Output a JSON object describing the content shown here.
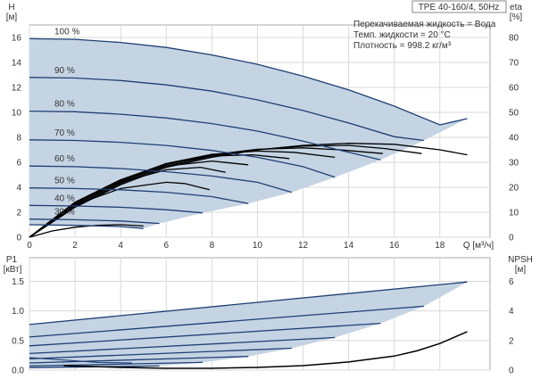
{
  "chart_data": [
    {
      "panel": "top",
      "type": "line",
      "header": "TPE 40-160/4, 50Hz",
      "info_lines": [
        "Перекачиваемая жидкость = Вода",
        "Темп. жидкости = 20 °C",
        "Плотность = 998.2 кг/м³"
      ],
      "xlabel": "Q [м³/ч]",
      "ylabel_left": [
        "H",
        "[м]"
      ],
      "ylabel_right": [
        "eta",
        "[%]"
      ],
      "xlim": [
        0,
        20.2
      ],
      "ylim": [
        0,
        17
      ],
      "ylim_right": [
        0,
        85
      ],
      "xticks": [
        "0",
        "2",
        "4",
        "6",
        "8",
        "10",
        "12",
        "14",
        "16",
        "18"
      ],
      "yticks_left": [
        "0",
        "2",
        "4",
        "6",
        "8",
        "10",
        "12",
        "14",
        "16"
      ],
      "yticks_right": [
        "0",
        "10",
        "20",
        "30",
        "40",
        "50",
        "60",
        "70",
        "80"
      ],
      "grid": true,
      "operating_area_color": "#c5d4e3",
      "head_curve_color": "#1f3f73",
      "efficiency_curve_color": "#000000",
      "head_curves": [
        {
          "label": "100 %",
          "x": [
            0,
            2,
            4,
            6,
            8,
            10,
            12,
            14,
            16,
            18,
            19.2
          ],
          "y": [
            15.9,
            15.85,
            15.6,
            15.2,
            14.6,
            13.85,
            12.9,
            11.8,
            10.5,
            9.0,
            9.5
          ]
        },
        {
          "label": "90 %",
          "x": [
            0,
            2,
            4,
            6,
            8,
            10,
            12,
            14,
            16,
            17.3
          ],
          "y": [
            12.8,
            12.75,
            12.55,
            12.2,
            11.7,
            11.0,
            10.15,
            9.15,
            8.05,
            7.75
          ]
        },
        {
          "label": "80 %",
          "x": [
            0,
            2,
            4,
            6,
            8,
            10,
            12,
            14,
            15.4
          ],
          "y": [
            10.1,
            10.05,
            9.85,
            9.55,
            9.1,
            8.5,
            7.7,
            6.8,
            6.2
          ]
        },
        {
          "label": "70 %",
          "x": [
            0,
            2,
            4,
            6,
            8,
            10,
            12,
            13.4
          ],
          "y": [
            7.8,
            7.75,
            7.6,
            7.35,
            6.95,
            6.4,
            5.65,
            4.8
          ]
        },
        {
          "label": "60 %",
          "x": [
            0,
            2,
            4,
            6,
            8,
            10,
            11.5
          ],
          "y": [
            5.7,
            5.65,
            5.5,
            5.25,
            4.9,
            4.4,
            3.6
          ]
        },
        {
          "label": "50 %",
          "x": [
            0,
            2,
            4,
            6,
            8,
            9.6
          ],
          "y": [
            3.95,
            3.9,
            3.8,
            3.6,
            3.25,
            2.7
          ]
        },
        {
          "label": "40 %",
          "x": [
            0,
            2,
            4,
            6,
            7.6
          ],
          "y": [
            2.55,
            2.5,
            2.4,
            2.2,
            1.95
          ]
        },
        {
          "label": "30 %",
          "x": [
            0,
            2,
            4,
            5.7
          ],
          "y": [
            1.45,
            1.4,
            1.3,
            1.1
          ]
        },
        {
          "label": "",
          "x": [
            0,
            2,
            4,
            5
          ],
          "y": [
            1.0,
            0.95,
            0.85,
            0.7
          ]
        }
      ],
      "efficiency_curves_pct": [
        {
          "x": [
            0,
            2,
            4,
            6,
            8,
            10,
            12,
            14,
            16,
            18,
            19.2
          ],
          "y": [
            0,
            12,
            21,
            28,
            32,
            35,
            36.8,
            37.6,
            37.2,
            35,
            33
          ]
        },
        {
          "x": [
            0,
            2,
            4,
            6,
            8,
            10,
            12,
            14,
            15.6,
            17.2
          ],
          "y": [
            0,
            12.5,
            21.5,
            28.5,
            32.5,
            35,
            36.5,
            36.8,
            35.5,
            33.5
          ]
        },
        {
          "x": [
            0,
            2,
            4,
            6,
            8,
            10,
            12,
            13.6,
            15.5
          ],
          "y": [
            0,
            13,
            22,
            29,
            33,
            35.2,
            35.8,
            35,
            33.5
          ]
        },
        {
          "x": [
            0,
            2,
            4,
            6,
            8,
            10,
            11.6,
            13.4
          ],
          "y": [
            0,
            13.5,
            22.5,
            29.5,
            33.2,
            34.5,
            34,
            32
          ]
        },
        {
          "x": [
            0,
            2,
            4,
            6,
            8,
            9.8,
            11.4
          ],
          "y": [
            0,
            14,
            23,
            29.5,
            32.5,
            33,
            31.5
          ]
        },
        {
          "x": [
            0,
            2,
            4,
            6,
            8,
            9.6
          ],
          "y": [
            0,
            14,
            23,
            28.5,
            30.5,
            29
          ]
        },
        {
          "x": [
            0,
            2,
            4,
            6,
            7.5,
            8.6
          ],
          "y": [
            0,
            14,
            22,
            27,
            28,
            26
          ]
        },
        {
          "x": [
            0,
            2,
            4,
            6,
            6.8,
            7.9
          ],
          "y": [
            0,
            13,
            19.5,
            22,
            21.5,
            19
          ]
        },
        {
          "x": [
            0,
            1,
            2,
            3,
            4,
            5
          ],
          "y": [
            0,
            2.5,
            4,
            4.8,
            5,
            4.5
          ]
        }
      ]
    },
    {
      "panel": "bottom",
      "type": "line",
      "xlabel": "",
      "ylabel_left": [
        "P1",
        "[кВт]"
      ],
      "ylabel_right": [
        "NPSH",
        "[м]"
      ],
      "xlim": [
        0,
        20.2
      ],
      "ylim": [
        0,
        1.9
      ],
      "ylim_right": [
        0,
        7.6
      ],
      "yticks_left": [
        "0.0",
        "0.5",
        "1.0",
        "1.5"
      ],
      "yticks_right": [
        "0",
        "2",
        "4",
        "6"
      ],
      "grid": true,
      "power_curves": [
        {
          "x": [
            0,
            19.2
          ],
          "y": [
            0.77,
            1.49
          ]
        },
        {
          "x": [
            0,
            17.3
          ],
          "y": [
            0.56,
            1.08
          ]
        },
        {
          "x": [
            0,
            15.4
          ],
          "y": [
            0.41,
            0.79
          ]
        },
        {
          "x": [
            0,
            13.4
          ],
          "y": [
            0.28,
            0.55
          ]
        },
        {
          "x": [
            0,
            11.5
          ],
          "y": [
            0.19,
            0.37
          ]
        },
        {
          "x": [
            0,
            9.6
          ],
          "y": [
            0.12,
            0.23
          ]
        },
        {
          "x": [
            0,
            7.6
          ],
          "y": [
            0.07,
            0.13
          ]
        },
        {
          "x": [
            0,
            5.7
          ],
          "y": [
            0.04,
            0.07
          ]
        }
      ],
      "npsh_m": {
        "x": [
          1.5,
          4,
          6,
          8,
          10,
          12,
          14,
          16,
          17,
          18,
          19.2
        ],
        "y": [
          0.3,
          0.18,
          0.12,
          0.12,
          0.18,
          0.3,
          0.55,
          0.95,
          1.3,
          1.8,
          2.6
        ]
      },
      "min_power_hint": {
        "x": [
          0,
          1.5,
          3,
          4.5
        ],
        "y": [
          0.21,
          0.17,
          0.13,
          0.12
        ]
      }
    }
  ]
}
